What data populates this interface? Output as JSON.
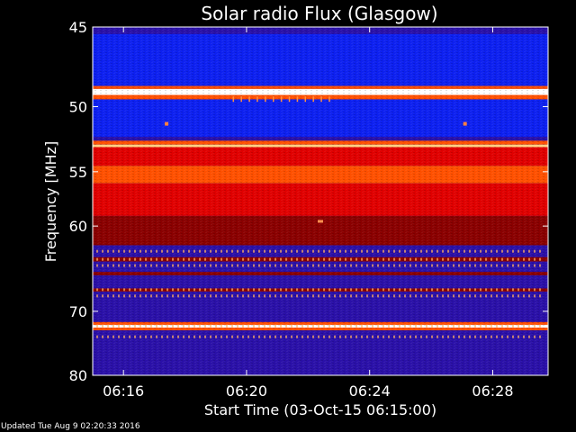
{
  "chart_data": {
    "type": "heatmap",
    "title": "Solar radio Flux (Glasgow)",
    "xlabel": "Start Time (03-Oct-15 06:15:00)",
    "ylabel": "Frequency [MHz]",
    "x_ticks": [
      "06:16",
      "06:20",
      "06:24",
      "06:28"
    ],
    "x_tick_minutes": [
      16,
      20,
      24,
      28
    ],
    "x_range_minutes": [
      15.0,
      29.8
    ],
    "y_ticks": [
      "45",
      "50",
      "55",
      "60",
      "70",
      "80"
    ],
    "y_tick_values": [
      45,
      50,
      55,
      60,
      70,
      80
    ],
    "y_range": [
      45,
      80
    ],
    "y_scale": "reciprocal",
    "colormap": [
      "#000000",
      "#2a10a8",
      "#0d20f0",
      "#8a0000",
      "#e00000",
      "#ff5000",
      "#ffd080",
      "#ffffff"
    ],
    "frequency_bands": [
      {
        "from": 45.0,
        "to": 45.4,
        "level": 1
      },
      {
        "from": 45.4,
        "to": 48.6,
        "level": 2
      },
      {
        "from": 48.6,
        "to": 48.8,
        "level": 5
      },
      {
        "from": 48.8,
        "to": 49.2,
        "level": 7
      },
      {
        "from": 49.2,
        "to": 49.5,
        "level": 5
      },
      {
        "from": 49.5,
        "to": 52.2,
        "level": 2
      },
      {
        "from": 52.2,
        "to": 52.5,
        "level": 1
      },
      {
        "from": 52.5,
        "to": 52.8,
        "level": 5
      },
      {
        "from": 52.8,
        "to": 53.0,
        "level": 6
      },
      {
        "from": 53.0,
        "to": 54.5,
        "level": 4
      },
      {
        "from": 54.5,
        "to": 56.0,
        "level": 5
      },
      {
        "from": 56.0,
        "to": 59.0,
        "level": 4
      },
      {
        "from": 59.0,
        "to": 62.0,
        "level": 3
      },
      {
        "from": 62.0,
        "to": 63.3,
        "level": 1
      },
      {
        "from": 63.3,
        "to": 63.8,
        "level": 3
      },
      {
        "from": 63.8,
        "to": 65.0,
        "level": 1
      },
      {
        "from": 65.0,
        "to": 65.4,
        "level": 3
      },
      {
        "from": 65.4,
        "to": 67.0,
        "level": 1
      },
      {
        "from": 67.0,
        "to": 67.4,
        "level": 3
      },
      {
        "from": 67.4,
        "to": 71.5,
        "level": 1
      },
      {
        "from": 71.5,
        "to": 71.9,
        "level": 5
      },
      {
        "from": 71.9,
        "to": 72.3,
        "level": 7
      },
      {
        "from": 72.3,
        "to": 72.7,
        "level": 5
      },
      {
        "from": 72.7,
        "to": 80.0,
        "level": 1
      }
    ],
    "grid": false
  },
  "footer": {
    "updated_text": "Updated Tue Aug  9 02:20:33 2016"
  }
}
